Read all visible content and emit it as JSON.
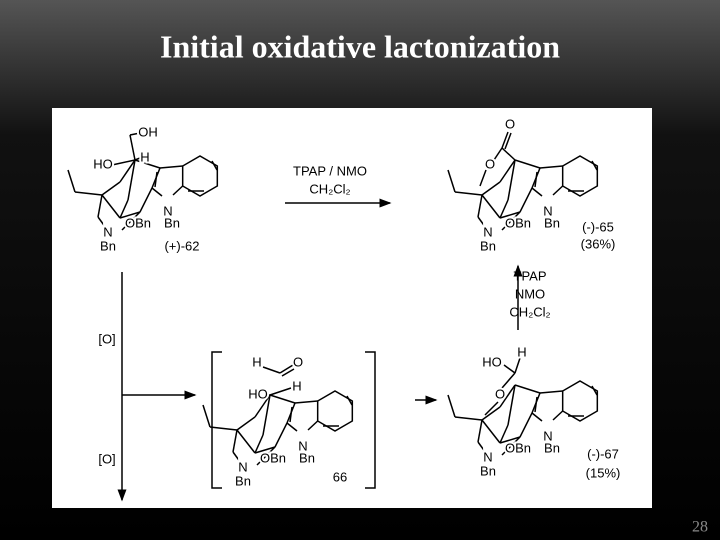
{
  "title": "Initial oxidative lactonization",
  "page_number": "28",
  "structures": [
    {
      "atoms": [
        "OH",
        "HO",
        "H",
        "N",
        "OBn",
        "Bn",
        "N",
        "Bn"
      ],
      "label": "(+)-62"
    },
    {
      "atoms": [
        "O",
        "O",
        "N",
        "OBn",
        "Bn",
        "N",
        "Bn"
      ],
      "label": "(-)-65",
      "yield": "(36%)"
    },
    {
      "atoms": [
        "H",
        "O",
        "HO",
        "H",
        "N",
        "OBn",
        "Bn",
        "N",
        "Bn"
      ],
      "label": "66"
    },
    {
      "atoms": [
        "HO",
        "H",
        "O",
        "N",
        "OBn",
        "Bn",
        "N",
        "Bn"
      ],
      "label": "(-)-67",
      "yield": "(15%)"
    }
  ],
  "reagents": {
    "top": [
      "TPAP / NMO",
      "CH₂Cl₂"
    ],
    "right": [
      "TPAP",
      "NMO",
      "CH₂Cl₂"
    ],
    "left": [
      "[O]",
      "[O]"
    ]
  }
}
